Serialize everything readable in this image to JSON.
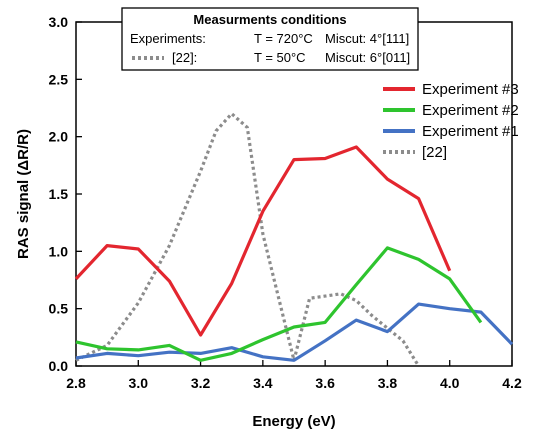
{
  "chart_data": {
    "type": "line",
    "title": "",
    "xlabel": "Energy (eV)",
    "ylabel": "RAS signal (ΔR/R)",
    "xlim": [
      2.8,
      4.2
    ],
    "ylim": [
      0.0,
      3.0
    ],
    "x_ticks": [
      "2.8",
      "3.0",
      "3.2",
      "3.4",
      "3.6",
      "3.8",
      "4.0",
      "4.2"
    ],
    "y_ticks": [
      "0.0",
      "0.5",
      "1.0",
      "1.5",
      "2.0",
      "2.5",
      "3.0"
    ],
    "grid": false,
    "legend_position": "right",
    "series": [
      {
        "name": "Experiment #3",
        "color": "#e3262f",
        "style": "solid",
        "x": [
          2.8,
          2.9,
          3.0,
          3.1,
          3.2,
          3.3,
          3.4,
          3.5,
          3.6,
          3.7,
          3.8,
          3.9,
          4.0
        ],
        "y": [
          0.76,
          1.05,
          1.02,
          0.74,
          0.27,
          0.72,
          1.35,
          1.8,
          1.81,
          1.91,
          1.63,
          1.46,
          0.83
        ]
      },
      {
        "name": "Experiment #2",
        "color": "#2ec42e",
        "style": "solid",
        "x": [
          2.8,
          2.9,
          3.0,
          3.1,
          3.2,
          3.3,
          3.4,
          3.5,
          3.6,
          3.7,
          3.8,
          3.9,
          4.0,
          4.1
        ],
        "y": [
          0.21,
          0.15,
          0.14,
          0.18,
          0.05,
          0.11,
          0.23,
          0.34,
          0.38,
          0.71,
          1.03,
          0.93,
          0.76,
          0.38
        ]
      },
      {
        "name": "Experiment #1",
        "color": "#4472c4",
        "style": "solid",
        "x": [
          2.8,
          2.9,
          3.0,
          3.1,
          3.2,
          3.3,
          3.4,
          3.5,
          3.6,
          3.7,
          3.8,
          3.9,
          4.0,
          4.1,
          4.2
        ],
        "y": [
          0.07,
          0.11,
          0.09,
          0.12,
          0.11,
          0.16,
          0.08,
          0.05,
          0.22,
          0.4,
          0.3,
          0.54,
          0.5,
          0.47,
          0.19
        ]
      },
      {
        "name": "[22]",
        "color": "#8c8c8c",
        "style": "dotted",
        "x": [
          2.8,
          2.9,
          3.0,
          3.1,
          3.2,
          3.25,
          3.3,
          3.35,
          3.4,
          3.5,
          3.55,
          3.6,
          3.65,
          3.7,
          3.75,
          3.8,
          3.85,
          3.9
        ],
        "y": [
          0.05,
          0.18,
          0.55,
          1.05,
          1.7,
          2.05,
          2.2,
          2.08,
          1.15,
          0.05,
          0.59,
          0.61,
          0.63,
          0.57,
          0.44,
          0.33,
          0.22,
          0.0
        ]
      }
    ]
  },
  "conditions_box": {
    "title": "Measurments conditions",
    "rows": [
      {
        "label": "Experiments:",
        "temperature": "T = 720°C",
        "miscut": "Miscut: 4°[111]"
      },
      {
        "label": "[22]:",
        "temperature": "T = 50°C",
        "miscut": "Miscut: 6°[011]"
      }
    ]
  }
}
